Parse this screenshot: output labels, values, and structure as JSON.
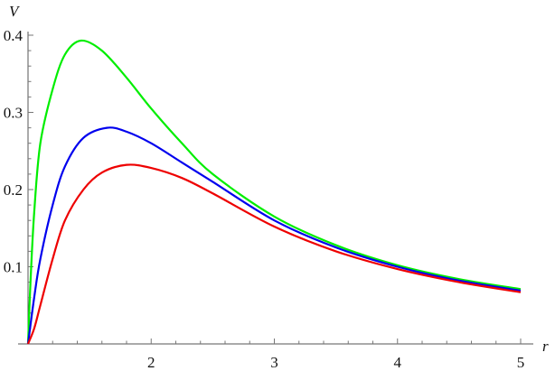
{
  "chart_data": {
    "type": "line",
    "title": "",
    "xlabel": "r",
    "ylabel": "V",
    "xlim": [
      1,
      5
    ],
    "ylim": [
      0,
      0.4
    ],
    "grid": false,
    "xticks": [
      2,
      3,
      4,
      5
    ],
    "xtick_labels": [
      "2",
      "3",
      "4",
      "5"
    ],
    "yticks": [
      0.1,
      0.2,
      0.3,
      0.4
    ],
    "ytick_labels": [
      "0.1",
      "0.2",
      "0.3",
      "0.4"
    ],
    "series": [
      {
        "color": "#00ee00",
        "x": [
          1,
          1.02,
          1.05,
          1.1,
          1.2,
          1.3,
          1.43,
          1.6,
          1.8,
          2,
          2.25,
          2.5,
          3,
          3.5,
          4,
          4.5,
          5
        ],
        "y": [
          0,
          0.08,
          0.17,
          0.26,
          0.33,
          0.375,
          0.393,
          0.38,
          0.345,
          0.305,
          0.26,
          0.22,
          0.165,
          0.128,
          0.102,
          0.084,
          0.071
        ]
      },
      {
        "color": "#0000ee",
        "x": [
          1,
          1.05,
          1.1,
          1.2,
          1.3,
          1.45,
          1.64,
          1.8,
          2,
          2.25,
          2.5,
          3,
          3.5,
          4,
          4.5,
          5
        ],
        "y": [
          0,
          0.06,
          0.11,
          0.18,
          0.23,
          0.267,
          0.28,
          0.275,
          0.26,
          0.235,
          0.21,
          0.16,
          0.125,
          0.1,
          0.082,
          0.069
        ]
      },
      {
        "color": "#ee0000",
        "x": [
          1,
          1.05,
          1.1,
          1.2,
          1.3,
          1.45,
          1.6,
          1.8,
          2,
          2.25,
          2.5,
          3,
          3.5,
          4,
          4.5,
          5
        ],
        "y": [
          0,
          0.02,
          0.05,
          0.11,
          0.16,
          0.2,
          0.222,
          0.232,
          0.228,
          0.215,
          0.195,
          0.152,
          0.12,
          0.097,
          0.08,
          0.067
        ]
      }
    ]
  }
}
